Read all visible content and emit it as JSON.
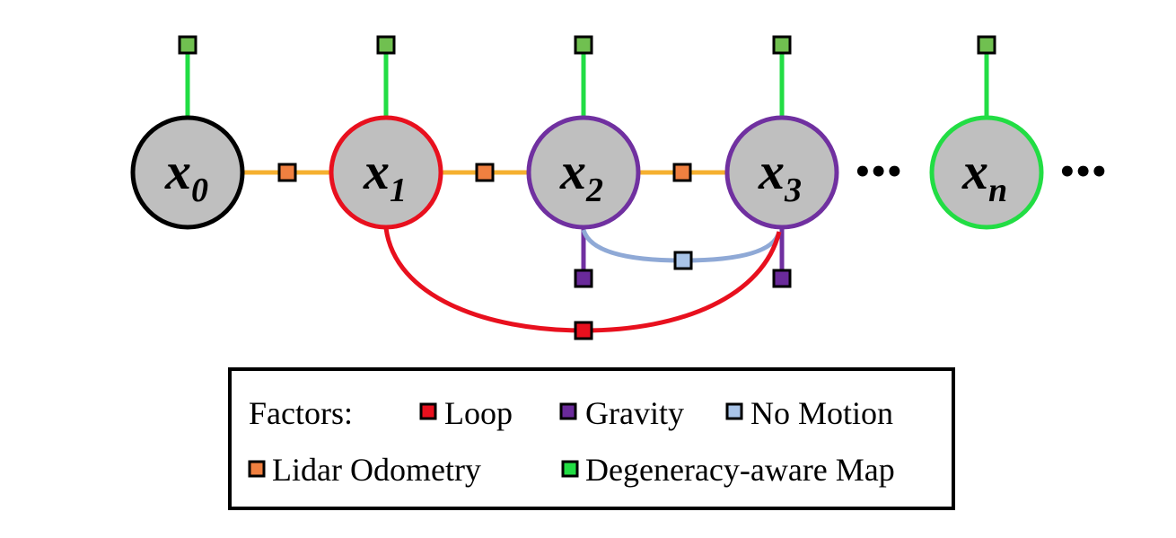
{
  "colors": {
    "loop": "#e8101e",
    "gravity": "#6a2a9a",
    "no_motion": "#a9c4e8",
    "lidar_odometry": "#f08040",
    "degeneracy_aware_map": "#22dd44",
    "map_square": "#70c050",
    "odometry_line": "#f5b030",
    "no_motion_line": "#8fa9d6",
    "gravity_line": "#7030a0",
    "node_fill": "#bfbfbf"
  },
  "nodes": [
    {
      "base": "x",
      "sub": "0",
      "border": "#000000"
    },
    {
      "base": "x",
      "sub": "1",
      "border": "#e8101e"
    },
    {
      "base": "x",
      "sub": "2",
      "border": "#7030a0"
    },
    {
      "base": "x",
      "sub": "3",
      "border": "#7030a0"
    },
    {
      "base": "x",
      "sub": "n",
      "border": "#22dd44"
    }
  ],
  "ellipsis": "•••",
  "legend": {
    "title": "Factors:",
    "items": {
      "loop": "Loop",
      "gravity": "Gravity",
      "no_motion": "No Motion",
      "lidar_odometry": "Lidar Odometry",
      "degeneracy_aware_map": "Degeneracy-aware Map"
    }
  }
}
